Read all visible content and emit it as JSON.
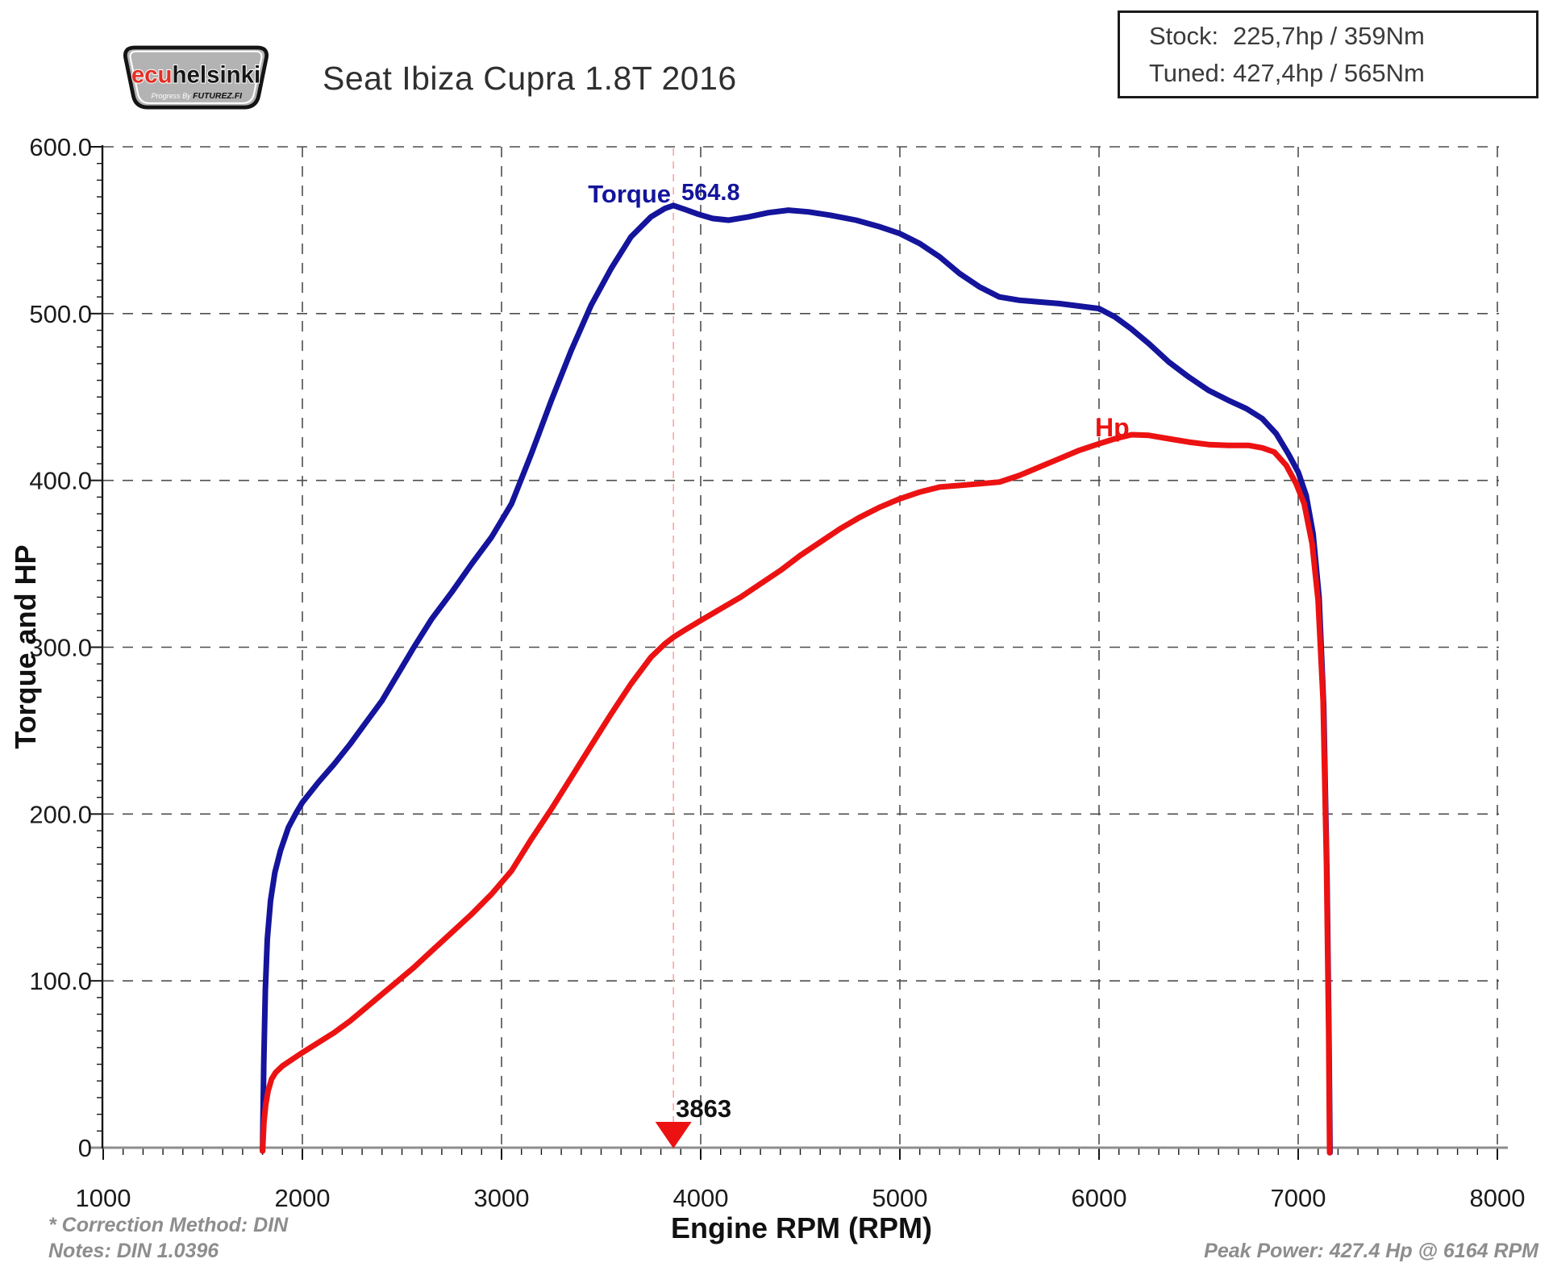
{
  "header": {
    "title": "Seat Ibiza Cupra 1.8T 2016",
    "logo": {
      "brand_red": "ecu",
      "brand_black": "helsinki",
      "tagline_prefix": "Progress By ",
      "tagline_brand": "FUTUREZ.FI"
    },
    "info_box": {
      "rows": [
        {
          "label": "Stock:",
          "value": "225,7hp / 359Nm"
        },
        {
          "label": "Tuned:",
          "value": "427,4hp / 565Nm"
        }
      ]
    }
  },
  "footer": {
    "correction": "* Correction Method: DIN",
    "notes": "Notes: DIN 1.0396",
    "peak_power": "Peak Power: 427.4 Hp @ 6164 RPM"
  },
  "chart_data": {
    "type": "line",
    "title": "Seat Ibiza Cupra 1.8T 2016",
    "xlabel": "Engine RPM (RPM)",
    "ylabel": "Torque and HP",
    "xlim": [
      1000,
      8000
    ],
    "ylim": [
      0,
      600
    ],
    "x_ticks": [
      1000,
      2000,
      3000,
      4000,
      5000,
      6000,
      7000,
      8000
    ],
    "x_tick_labels": [
      "1000",
      "2000",
      "3000",
      "4000",
      "5000",
      "6000",
      "7000",
      "8000"
    ],
    "y_ticks": [
      0,
      100,
      200,
      300,
      400,
      500,
      600
    ],
    "y_tick_labels": [
      "0",
      "100.0",
      "200.0",
      "300.0",
      "400.0",
      "500.0",
      "600.0"
    ],
    "x_minor_step": 100,
    "y_minor_step": 10,
    "grid": "dashed",
    "legend_position": "inline-labels",
    "colors": {
      "torque": "#14149c",
      "hp": "#ec1212",
      "grid": "#4d4d4d",
      "axis": "#8e8e8e",
      "marker_line": "#ffa3a3",
      "tick_text": "#1b1b1b"
    },
    "annotations": {
      "torque_label": "Torque",
      "torque_peak_value": "564.8",
      "hp_label": "Hp",
      "peak_rpm_label": "3863",
      "torque_peak": {
        "rpm": 3863,
        "nm": 564.8
      },
      "hp_peak": {
        "rpm": 6164,
        "hp": 427.4
      }
    },
    "series": [
      {
        "name": "Torque",
        "unit": "Nm",
        "color": "#14149c",
        "points": [
          [
            1800,
            -2
          ],
          [
            1806,
            50
          ],
          [
            1814,
            95
          ],
          [
            1824,
            125
          ],
          [
            1840,
            148
          ],
          [
            1862,
            165
          ],
          [
            1890,
            178
          ],
          [
            1930,
            192
          ],
          [
            1970,
            201
          ],
          [
            2000,
            207
          ],
          [
            2080,
            219
          ],
          [
            2160,
            230
          ],
          [
            2240,
            242
          ],
          [
            2320,
            255
          ],
          [
            2400,
            268
          ],
          [
            2480,
            284
          ],
          [
            2560,
            300
          ],
          [
            2650,
            317
          ],
          [
            2750,
            333
          ],
          [
            2850,
            350
          ],
          [
            2950,
            366
          ],
          [
            3050,
            386
          ],
          [
            3150,
            416
          ],
          [
            3250,
            448
          ],
          [
            3350,
            478
          ],
          [
            3450,
            505
          ],
          [
            3550,
            527
          ],
          [
            3650,
            546
          ],
          [
            3750,
            558
          ],
          [
            3820,
            563
          ],
          [
            3863,
            564.8
          ],
          [
            3920,
            562.5
          ],
          [
            3990,
            559.5
          ],
          [
            4060,
            557
          ],
          [
            4140,
            556
          ],
          [
            4240,
            558
          ],
          [
            4340,
            560.5
          ],
          [
            4440,
            562
          ],
          [
            4540,
            561
          ],
          [
            4650,
            559
          ],
          [
            4780,
            556
          ],
          [
            4900,
            552
          ],
          [
            5000,
            548
          ],
          [
            5100,
            542
          ],
          [
            5200,
            534
          ],
          [
            5300,
            524
          ],
          [
            5400,
            516
          ],
          [
            5500,
            510
          ],
          [
            5600,
            508
          ],
          [
            5700,
            507
          ],
          [
            5800,
            506
          ],
          [
            5900,
            504.5
          ],
          [
            6000,
            503
          ],
          [
            6080,
            498
          ],
          [
            6160,
            491
          ],
          [
            6250,
            482
          ],
          [
            6350,
            471
          ],
          [
            6450,
            462
          ],
          [
            6550,
            454
          ],
          [
            6650,
            448
          ],
          [
            6740,
            443
          ],
          [
            6820,
            437
          ],
          [
            6890,
            428
          ],
          [
            6950,
            416
          ],
          [
            7000,
            405
          ],
          [
            7040,
            391
          ],
          [
            7075,
            368
          ],
          [
            7105,
            330
          ],
          [
            7128,
            265
          ],
          [
            7145,
            160
          ],
          [
            7155,
            60
          ],
          [
            7160,
            -3
          ]
        ]
      },
      {
        "name": "Hp",
        "unit": "hp",
        "color": "#ec1212",
        "points": [
          [
            1800,
            -2
          ],
          [
            1807,
            15
          ],
          [
            1816,
            26
          ],
          [
            1828,
            34
          ],
          [
            1845,
            41
          ],
          [
            1865,
            45
          ],
          [
            1900,
            49
          ],
          [
            1950,
            53
          ],
          [
            2000,
            57
          ],
          [
            2080,
            63
          ],
          [
            2160,
            69
          ],
          [
            2240,
            76
          ],
          [
            2320,
            84
          ],
          [
            2400,
            92
          ],
          [
            2480,
            100
          ],
          [
            2560,
            108
          ],
          [
            2650,
            118
          ],
          [
            2750,
            129
          ],
          [
            2850,
            140
          ],
          [
            2950,
            152
          ],
          [
            3050,
            166
          ],
          [
            3150,
            185
          ],
          [
            3250,
            203
          ],
          [
            3350,
            222
          ],
          [
            3450,
            241
          ],
          [
            3550,
            260
          ],
          [
            3650,
            278
          ],
          [
            3750,
            294
          ],
          [
            3820,
            302
          ],
          [
            3863,
            306
          ],
          [
            3930,
            311
          ],
          [
            4000,
            316
          ],
          [
            4100,
            323
          ],
          [
            4200,
            330
          ],
          [
            4300,
            338
          ],
          [
            4400,
            346
          ],
          [
            4500,
            355
          ],
          [
            4600,
            363
          ],
          [
            4700,
            371
          ],
          [
            4800,
            378
          ],
          [
            4900,
            384
          ],
          [
            5000,
            389
          ],
          [
            5100,
            393
          ],
          [
            5200,
            396
          ],
          [
            5300,
            397
          ],
          [
            5400,
            398
          ],
          [
            5500,
            399
          ],
          [
            5600,
            403
          ],
          [
            5700,
            408
          ],
          [
            5800,
            413
          ],
          [
            5900,
            418
          ],
          [
            6000,
            422
          ],
          [
            6080,
            425
          ],
          [
            6164,
            427.4
          ],
          [
            6250,
            427
          ],
          [
            6350,
            425
          ],
          [
            6450,
            423
          ],
          [
            6550,
            421.5
          ],
          [
            6650,
            421
          ],
          [
            6750,
            421
          ],
          [
            6820,
            419.5
          ],
          [
            6880,
            417
          ],
          [
            6940,
            409
          ],
          [
            6990,
            398
          ],
          [
            7030,
            386
          ],
          [
            7070,
            362
          ],
          [
            7100,
            328
          ],
          [
            7125,
            268
          ],
          [
            7142,
            170
          ],
          [
            7153,
            70
          ],
          [
            7158,
            -3
          ]
        ]
      }
    ]
  }
}
